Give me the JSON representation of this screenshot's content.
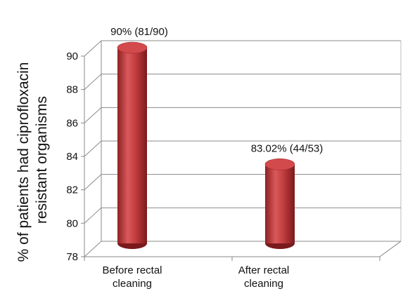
{
  "chart_data": {
    "type": "bar",
    "style": "3d-cylinder",
    "categories": [
      "Before rectal cleaning",
      "After rectal cleaning"
    ],
    "category_label_lines": [
      [
        "Before rectal",
        "cleaning"
      ],
      [
        "After rectal",
        "cleaning"
      ]
    ],
    "values": [
      90,
      83.02
    ],
    "data_labels": [
      "90% (81/90)",
      "83.02% (44/53)"
    ],
    "ylabel_lines": [
      "% of patients had ciprofloxacin",
      "resistant organisms"
    ],
    "xlabel": "",
    "ylim": [
      78,
      90
    ],
    "yticks": [
      78,
      80,
      82,
      84,
      86,
      88,
      90
    ],
    "grid": true,
    "legend": "none",
    "bar_color": "#c0393b"
  }
}
